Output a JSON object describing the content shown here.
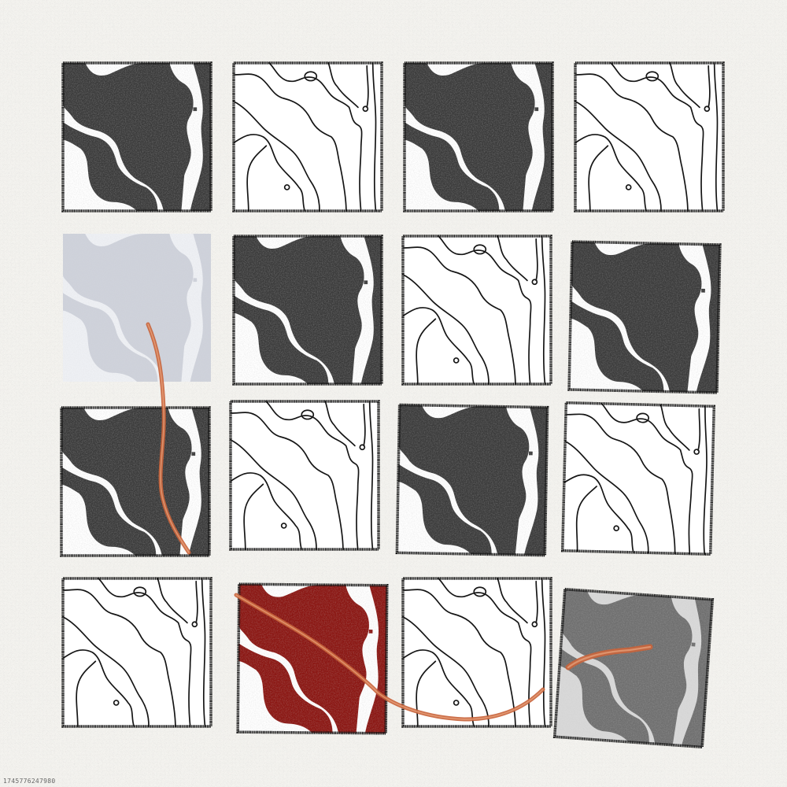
{
  "caption": {
    "seed": "1745776247980"
  },
  "palette": {
    "paper": "#f4f3ef",
    "ink": "#151515",
    "dark_fill": "#3a3a3a",
    "pale_fill": "#cfd2db",
    "red_fill": "#8a1410",
    "gray_fill": "#6e6e6e",
    "thread": "#c8643c"
  },
  "grid": {
    "rows": 4,
    "cols": 4,
    "tiles": [
      [
        "dark",
        "lines",
        "dark",
        "lines"
      ],
      [
        "pale",
        "dark",
        "lines",
        "dark"
      ],
      [
        "dark",
        "lines",
        "dark",
        "lines"
      ],
      [
        "lines",
        "red",
        "lines",
        "gray"
      ]
    ]
  }
}
